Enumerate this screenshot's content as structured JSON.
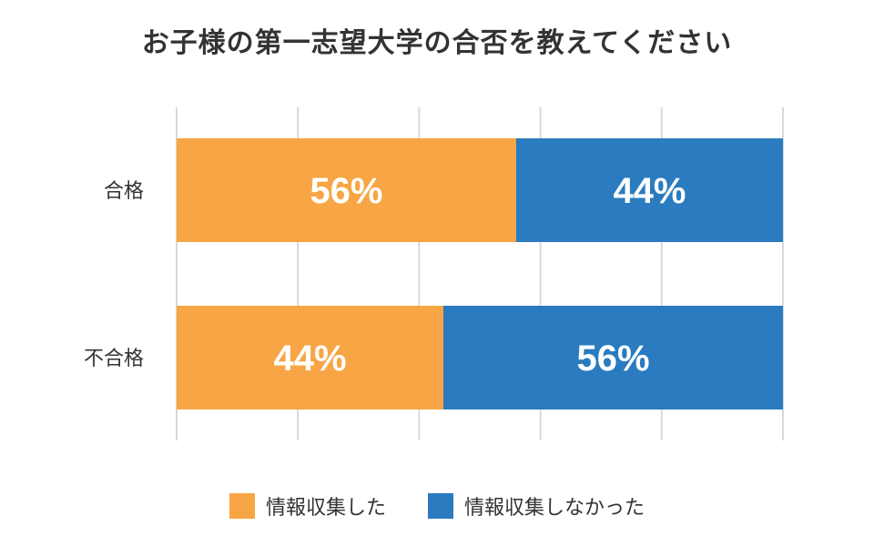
{
  "chart_data": {
    "type": "bar",
    "orientation": "horizontal",
    "stacked": true,
    "title": "お子様の第一志望大学の合否を教えてください",
    "categories": [
      "合格",
      "不合格"
    ],
    "series": [
      {
        "name": "情報収集した",
        "values": [
          56,
          44
        ],
        "color": "#F7A545"
      },
      {
        "name": "情報収集しなかった",
        "values": [
          44,
          56
        ],
        "color": "#2A7BBF"
      }
    ],
    "data_labels": [
      [
        "56%",
        "44%"
      ],
      [
        "44%",
        "56%"
      ]
    ],
    "xlim": [
      0,
      100
    ],
    "grid": true,
    "legend_position": "bottom"
  }
}
